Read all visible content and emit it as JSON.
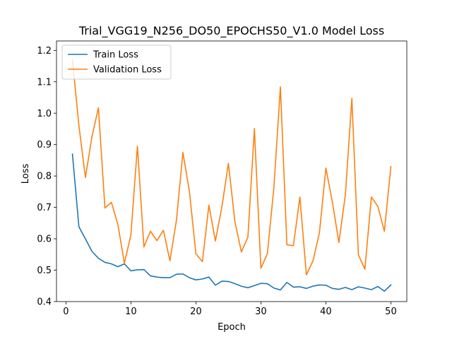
{
  "chart_data": {
    "type": "line",
    "title": "Trial_VGG19_N256_DO50_EPOCHS50_V1.0 Model Loss",
    "xlabel": "Epoch",
    "ylabel": "Loss",
    "xlim": [
      -1.45,
      52.45
    ],
    "ylim": [
      0.4,
      1.23
    ],
    "xticks": [
      0,
      10,
      20,
      30,
      40,
      50
    ],
    "yticks": [
      0.4,
      0.5,
      0.6,
      0.7,
      0.8,
      0.9,
      1.0,
      1.1,
      1.2
    ],
    "yticklabels": [
      "0.4",
      "0.5",
      "0.6",
      "0.7",
      "0.8",
      "0.9",
      "1.0",
      "1.1",
      "1.2"
    ],
    "legend_position": "top-left",
    "grid": false,
    "x": [
      1,
      2,
      3,
      4,
      5,
      6,
      7,
      8,
      9,
      10,
      11,
      12,
      13,
      14,
      15,
      16,
      17,
      18,
      19,
      20,
      21,
      22,
      23,
      24,
      25,
      26,
      27,
      28,
      29,
      30,
      31,
      32,
      33,
      34,
      35,
      36,
      37,
      38,
      39,
      40,
      41,
      42,
      43,
      44,
      45,
      46,
      47,
      48,
      49,
      50
    ],
    "series": [
      {
        "name": "Train Loss",
        "color": "#1f77b4",
        "values": [
          0.87,
          0.638,
          0.6,
          0.56,
          0.538,
          0.525,
          0.52,
          0.511,
          0.52,
          0.498,
          0.501,
          0.502,
          0.482,
          0.478,
          0.476,
          0.476,
          0.487,
          0.488,
          0.476,
          0.469,
          0.472,
          0.478,
          0.452,
          0.465,
          0.464,
          0.457,
          0.449,
          0.444,
          0.451,
          0.458,
          0.457,
          0.443,
          0.437,
          0.461,
          0.446,
          0.447,
          0.442,
          0.449,
          0.453,
          0.452,
          0.442,
          0.439,
          0.445,
          0.438,
          0.447,
          0.443,
          0.438,
          0.448,
          0.433,
          0.453
        ]
      },
      {
        "name": "Validation Loss",
        "color": "#ff7f0e",
        "values": [
          1.17,
          0.96,
          0.795,
          0.925,
          1.017,
          0.698,
          0.716,
          0.645,
          0.522,
          0.613,
          0.895,
          0.574,
          0.624,
          0.594,
          0.627,
          0.53,
          0.658,
          0.875,
          0.751,
          0.552,
          0.527,
          0.707,
          0.593,
          0.702,
          0.84,
          0.655,
          0.558,
          0.605,
          0.951,
          0.506,
          0.553,
          0.763,
          1.084,
          0.581,
          0.578,
          0.733,
          0.485,
          0.529,
          0.618,
          0.825,
          0.717,
          0.588,
          0.74,
          1.047,
          0.549,
          0.503,
          0.733,
          0.703,
          0.624,
          0.83
        ]
      }
    ]
  }
}
